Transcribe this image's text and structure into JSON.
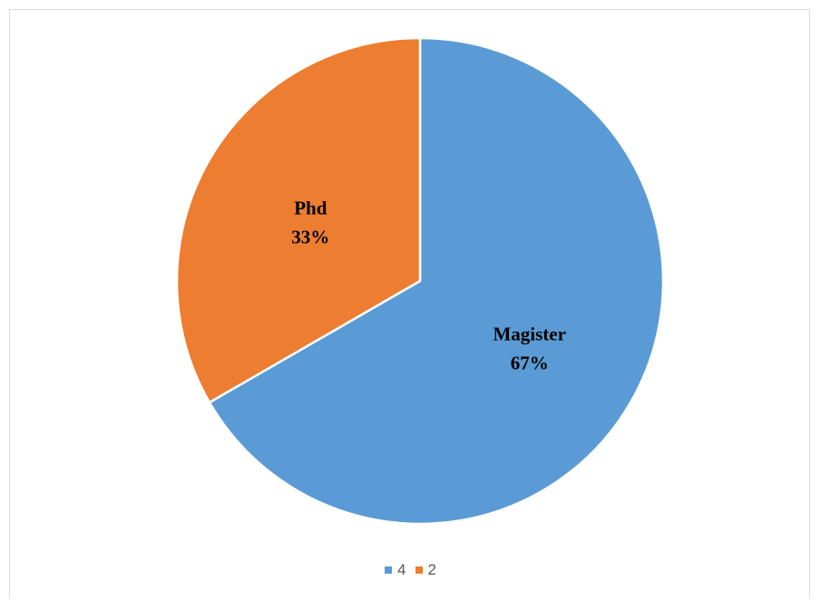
{
  "chart_data": {
    "type": "pie",
    "slices": [
      {
        "label": "Magister",
        "legend": "4",
        "value": 4,
        "percent_label": "67%",
        "color": "#5b9bd5"
      },
      {
        "label": "Phd",
        "legend": "2",
        "value": 2,
        "percent_label": "33%",
        "color": "#ed7d31"
      }
    ],
    "title": "",
    "legend_position": "bottom",
    "start_angle_deg": 0,
    "direction": "clockwise"
  }
}
